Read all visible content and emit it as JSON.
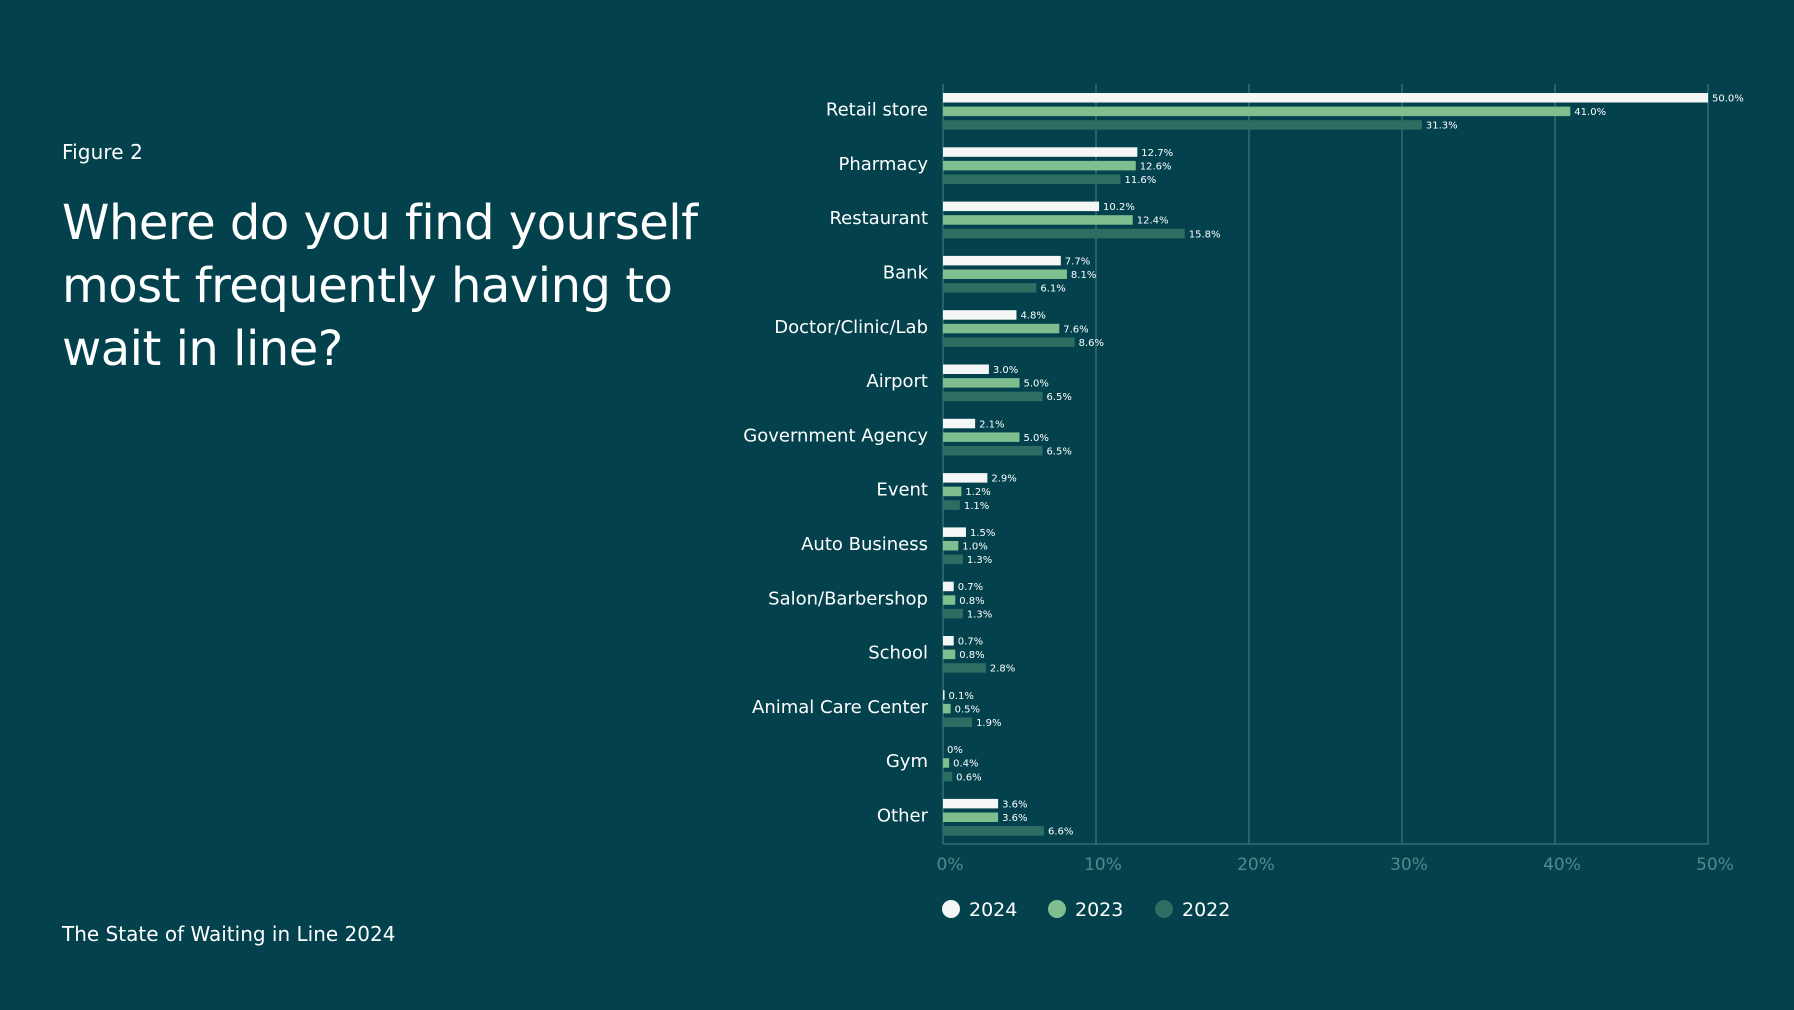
{
  "figure_label": "Figure 2",
  "title": "Where do you find yourself most frequently having to wait in line?",
  "footer": "The State of Waiting in Line 2024",
  "colors": {
    "background": "#03424D",
    "series_2024": "#F4F7F5",
    "series_2023": "#7FBE8F",
    "series_2022": "#2D6E63",
    "gridline": "#2F6E72",
    "tick_text": "#4F8A8C",
    "text": "#FFFFFF"
  },
  "chart_data": {
    "type": "bar",
    "orientation": "horizontal",
    "title": "Where do you find yourself most frequently having to wait in line?",
    "xlabel": "",
    "ylabel": "",
    "xlim": [
      0,
      50
    ],
    "x_ticks": [
      "0%",
      "10%",
      "20%",
      "30%",
      "40%",
      "50%"
    ],
    "grid": true,
    "legend_position": "bottom",
    "categories": [
      "Retail store",
      "Pharmacy",
      "Restaurant",
      "Bank",
      "Doctor/Clinic/Lab",
      "Airport",
      "Government Agency",
      "Event",
      "Auto Business",
      "Salon/Barbershop",
      "School",
      "Animal Care Center",
      "Gym",
      "Other"
    ],
    "series": [
      {
        "name": "2024",
        "color": "#F4F7F5",
        "values": [
          50.0,
          12.7,
          10.2,
          7.7,
          4.8,
          3.0,
          2.1,
          2.9,
          1.5,
          0.7,
          0.7,
          0.1,
          0,
          3.6
        ],
        "labels": [
          "50.0%",
          "12.7%",
          "10.2%",
          "7.7%",
          "4.8%",
          "3.0%",
          "2.1%",
          "2.9%",
          "1.5%",
          "0.7%",
          "0.7%",
          "0.1%",
          "0%",
          "3.6%"
        ]
      },
      {
        "name": "2023",
        "color": "#7FBE8F",
        "values": [
          41.0,
          12.6,
          12.4,
          8.1,
          7.6,
          5.0,
          5.0,
          1.2,
          1.0,
          0.8,
          0.8,
          0.5,
          0.4,
          3.6
        ],
        "labels": [
          "41.0%",
          "12.6%",
          "12.4%",
          "8.1%",
          "7.6%",
          "5.0%",
          "5.0%",
          "1.2%",
          "1.0%",
          "0.8%",
          "0.8%",
          "0.5%",
          "0.4%",
          "3.6%"
        ]
      },
      {
        "name": "2022",
        "color": "#2D6E63",
        "values": [
          31.3,
          11.6,
          15.8,
          6.1,
          8.6,
          6.5,
          6.5,
          1.1,
          1.3,
          1.3,
          2.8,
          1.9,
          0.6,
          6.6
        ],
        "labels": [
          "31.3%",
          "11.6%",
          "15.8%",
          "6.1%",
          "8.6%",
          "6.5%",
          "6.5%",
          "1.1%",
          "1.3%",
          "1.3%",
          "2.8%",
          "1.9%",
          "0.6%",
          "6.6%"
        ]
      }
    ]
  }
}
